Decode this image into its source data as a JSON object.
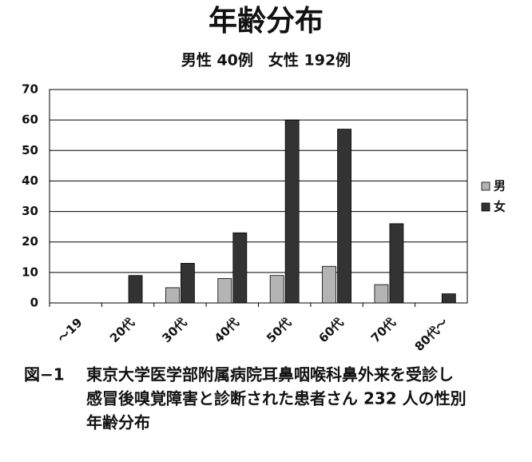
{
  "chart_data": {
    "type": "bar",
    "title": "年齢分布",
    "subtitle": "男性 40例　女性 192例",
    "categories": [
      "～19",
      "20代",
      "30代",
      "40代",
      "50代",
      "60代",
      "70代",
      "80代～"
    ],
    "series": [
      {
        "name": "男",
        "color": "#b4b4b4",
        "values": [
          0,
          0,
          5,
          8,
          9,
          12,
          6,
          0
        ]
      },
      {
        "name": "女",
        "color": "#333333",
        "values": [
          0,
          9,
          13,
          23,
          60,
          57,
          26,
          3
        ]
      }
    ],
    "ylim": [
      0,
      70
    ],
    "yticks": [
      0,
      10,
      20,
      30,
      40,
      50,
      60,
      70
    ],
    "grid": true,
    "legend": "right"
  },
  "caption": {
    "label": "図−1",
    "lines": [
      "東京大学医学部附属病院耳鼻咽喉科鼻外来を受診し",
      "感冒後嗅覚障害と診断された患者さん 232 人の性別",
      "年齢分布"
    ]
  }
}
